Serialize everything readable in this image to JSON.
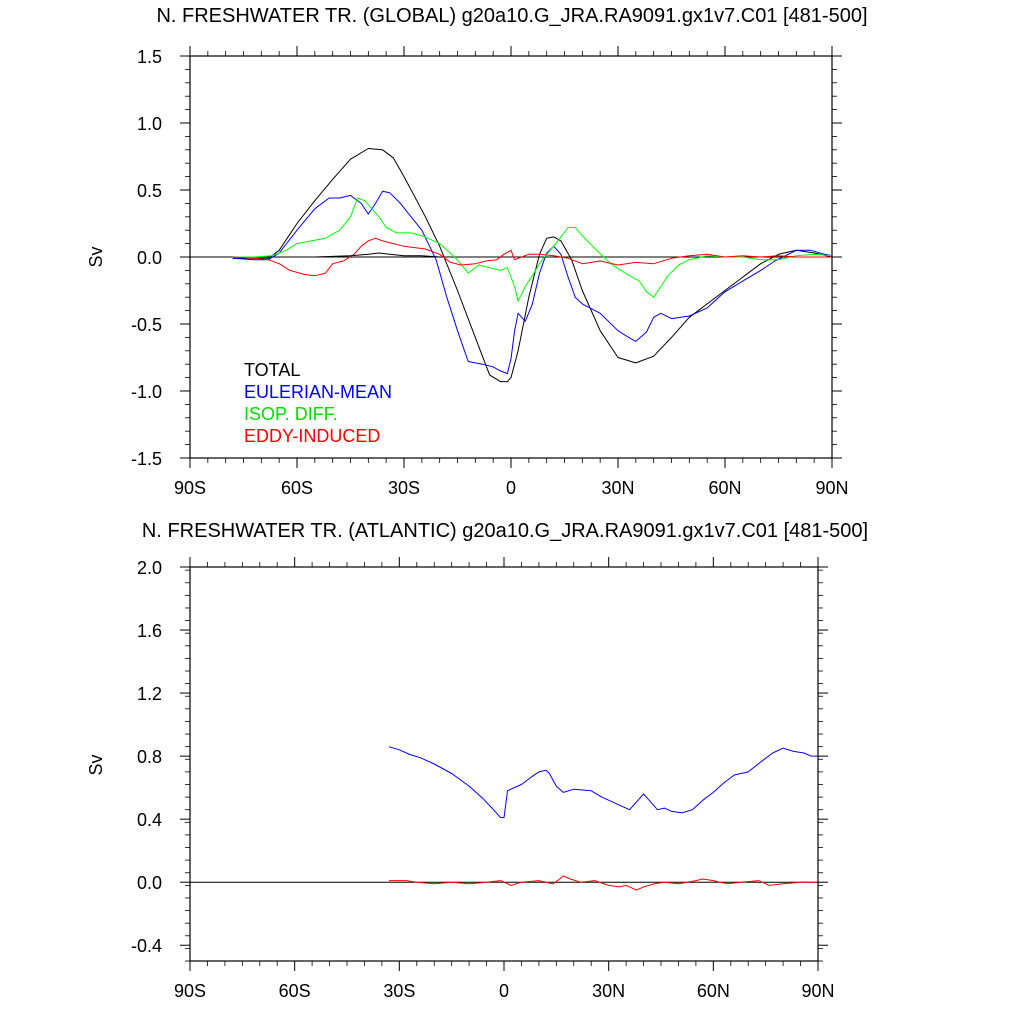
{
  "chart_data": [
    {
      "type": "line",
      "title": "N. FRESHWATER TR. (GLOBAL) g20a10.G_JRA.RA9091.gx1v7.C01 [481-500]",
      "ylabel": "Sv",
      "xlabel": "",
      "xlim": [
        -90,
        90
      ],
      "ylim": [
        -1.5,
        1.5
      ],
      "x_ticks": [
        -90,
        -60,
        -30,
        0,
        30,
        60,
        90
      ],
      "x_tick_labels": [
        "90S",
        "60S",
        "30S",
        "0",
        "30N",
        "60N",
        "90N"
      ],
      "y_ticks": [
        -1.5,
        -1.0,
        -0.5,
        0.0,
        0.5,
        1.0,
        1.5
      ],
      "y_tick_labels": [
        "-1.5",
        "-1.0",
        "-0.5",
        "0.0",
        "0.5",
        "1.0",
        "1.5"
      ],
      "zero_line": true,
      "grid": false,
      "legend_position": "lower-left",
      "series": [
        {
          "name": "TOTAL",
          "color": "#000000",
          "x": [
            -78,
            -72,
            -68,
            -65,
            -60,
            -55,
            -50,
            -45,
            -40,
            -36,
            -33,
            -30,
            -27,
            -24,
            -20,
            -15,
            -10,
            -6,
            -3,
            -1,
            0,
            2,
            5,
            8,
            10,
            12,
            14,
            17,
            20,
            25,
            30,
            35,
            40,
            45,
            50,
            55,
            60,
            65,
            70,
            75,
            80,
            85,
            90
          ],
          "y": [
            -0.01,
            -0.01,
            -0.01,
            0.05,
            0.25,
            0.42,
            0.58,
            0.73,
            0.81,
            0.8,
            0.74,
            0.6,
            0.45,
            0.3,
            0.08,
            -0.25,
            -0.6,
            -0.88,
            -0.93,
            -0.93,
            -0.9,
            -0.7,
            -0.3,
            0.02,
            0.14,
            0.15,
            0.12,
            -0.02,
            -0.25,
            -0.55,
            -0.75,
            -0.79,
            -0.74,
            -0.6,
            -0.45,
            -0.35,
            -0.25,
            -0.15,
            -0.05,
            0.02,
            0.05,
            0.03,
            0.0
          ]
        },
        {
          "name": "EULERIAN-MEAN",
          "color": "#0000ff",
          "x": [
            -78,
            -72,
            -68,
            -65,
            -60,
            -55,
            -51,
            -48,
            -45,
            -42,
            -40,
            -38,
            -36,
            -34,
            -31,
            -28,
            -25,
            -21,
            -18,
            -15,
            -12,
            -8,
            -5,
            -3,
            -1,
            0,
            1,
            2,
            4,
            6,
            8,
            10,
            12,
            14,
            16,
            18,
            20,
            25,
            30,
            33,
            35,
            38,
            40,
            42,
            45,
            50,
            55,
            60,
            65,
            70,
            74,
            77,
            80,
            84,
            88,
            90
          ],
          "y": [
            -0.01,
            -0.02,
            -0.02,
            0.03,
            0.2,
            0.36,
            0.44,
            0.44,
            0.46,
            0.4,
            0.32,
            0.4,
            0.49,
            0.48,
            0.4,
            0.3,
            0.2,
            -0.02,
            -0.3,
            -0.55,
            -0.78,
            -0.8,
            -0.82,
            -0.85,
            -0.87,
            -0.76,
            -0.55,
            -0.42,
            -0.48,
            -0.35,
            -0.12,
            0.03,
            0.08,
            0.02,
            -0.15,
            -0.3,
            -0.35,
            -0.42,
            -0.55,
            -0.6,
            -0.63,
            -0.56,
            -0.45,
            -0.42,
            -0.46,
            -0.44,
            -0.38,
            -0.26,
            -0.18,
            -0.1,
            -0.03,
            0.01,
            0.05,
            0.05,
            0.02,
            0.01
          ]
        },
        {
          "name": "ISOP. DIFF.",
          "color": "#00ff00",
          "x": [
            -78,
            -72,
            -67,
            -63,
            -60,
            -56,
            -52,
            -48,
            -45,
            -43,
            -41,
            -39,
            -37,
            -35,
            -32,
            -28,
            -25,
            -20,
            -15,
            -12,
            -9,
            -6,
            -3,
            -1,
            1,
            2,
            4,
            6,
            8,
            10,
            12,
            14,
            16,
            18,
            20,
            24,
            28,
            32,
            36,
            38,
            40,
            42,
            44,
            47,
            50,
            55,
            60,
            65,
            70,
            75,
            80,
            85,
            90
          ],
          "y": [
            0.0,
            0.0,
            0.01,
            0.05,
            0.1,
            0.12,
            0.14,
            0.2,
            0.3,
            0.44,
            0.42,
            0.36,
            0.3,
            0.22,
            0.18,
            0.18,
            0.16,
            0.1,
            -0.02,
            -0.12,
            -0.06,
            -0.08,
            -0.1,
            -0.08,
            -0.22,
            -0.33,
            -0.22,
            -0.14,
            -0.05,
            0.02,
            0.08,
            0.15,
            0.22,
            0.22,
            0.16,
            0.05,
            -0.05,
            -0.12,
            -0.18,
            -0.26,
            -0.3,
            -0.22,
            -0.14,
            -0.06,
            -0.02,
            0.01,
            0.0,
            0.0,
            -0.02,
            -0.02,
            0.01,
            0.02,
            0.01
          ]
        },
        {
          "name": "EDDY-INDUCED",
          "color": "#ff0000",
          "x": [
            -78,
            -72,
            -68,
            -65,
            -62,
            -58,
            -55,
            -52,
            -50,
            -47,
            -44,
            -42,
            -40,
            -38,
            -36,
            -33,
            -30,
            -27,
            -24,
            -20,
            -17,
            -14,
            -10,
            -7,
            -4,
            -2,
            0,
            1,
            3,
            5,
            8,
            12,
            16,
            20,
            25,
            30,
            35,
            40,
            45,
            50,
            55,
            60,
            65,
            70,
            75,
            80,
            85,
            90
          ],
          "y": [
            0.0,
            -0.01,
            -0.02,
            -0.05,
            -0.1,
            -0.13,
            -0.14,
            -0.12,
            -0.05,
            -0.03,
            0.02,
            0.08,
            0.12,
            0.14,
            0.12,
            0.1,
            0.08,
            0.07,
            0.06,
            0.02,
            -0.04,
            -0.06,
            -0.05,
            -0.03,
            -0.02,
            0.02,
            0.05,
            -0.02,
            0.0,
            0.02,
            0.02,
            0.01,
            -0.01,
            -0.05,
            -0.03,
            -0.06,
            -0.04,
            -0.05,
            -0.01,
            0.01,
            0.02,
            0.0,
            0.01,
            0.0,
            0.01,
            0.0,
            0.0,
            0.0
          ]
        },
        {
          "name": "",
          "color": "#000000",
          "x": [
            -55,
            -45,
            -40,
            -37,
            -34,
            -30,
            -25,
            -20
          ],
          "y": [
            0.0,
            0.01,
            0.02,
            0.03,
            0.02,
            0.01,
            0.01,
            0.0
          ]
        }
      ],
      "legend": [
        {
          "label": "TOTAL",
          "color": "#000000"
        },
        {
          "label": "EULERIAN-MEAN",
          "color": "#0000ff"
        },
        {
          "label": "ISOP. DIFF.",
          "color": "#00ff00"
        },
        {
          "label": "EDDY-INDUCED",
          "color": "#ff0000"
        }
      ]
    },
    {
      "type": "line",
      "title": "N. FRESHWATER TR. (ATLANTIC) g20a10.G_JRA.RA9091.gx1v7.C01 [481-500]",
      "ylabel": "Sv",
      "xlabel": "",
      "xlim": [
        -90,
        90
      ],
      "ylim": [
        -0.5,
        2.0
      ],
      "x_ticks": [
        -90,
        -60,
        -30,
        0,
        30,
        60,
        90
      ],
      "x_tick_labels": [
        "90S",
        "60S",
        "30S",
        "0",
        "30N",
        "60N",
        "90N"
      ],
      "y_ticks": [
        -0.4,
        0.0,
        0.4,
        0.8,
        1.2,
        1.6,
        2.0
      ],
      "y_tick_labels": [
        "-0.4",
        "0.0",
        "0.4",
        "0.8",
        "1.2",
        "1.6",
        "2.0"
      ],
      "zero_line": true,
      "grid": false,
      "series": [
        {
          "name": "",
          "color": "#0000ff",
          "x": [
            -33,
            -30,
            -27,
            -24,
            -20,
            -15,
            -10,
            -6,
            -3,
            -1,
            0,
            1,
            3,
            5,
            8,
            10,
            12,
            13,
            15,
            17,
            20,
            25,
            28,
            31,
            34,
            36,
            38,
            40,
            42,
            44,
            46,
            48,
            51,
            54,
            57,
            60,
            63,
            66,
            70,
            74,
            77,
            80,
            83,
            86,
            88,
            90
          ],
          "y": [
            0.86,
            0.84,
            0.81,
            0.79,
            0.75,
            0.69,
            0.61,
            0.53,
            0.46,
            0.41,
            0.41,
            0.58,
            0.6,
            0.62,
            0.67,
            0.7,
            0.71,
            0.69,
            0.61,
            0.57,
            0.59,
            0.58,
            0.54,
            0.51,
            0.48,
            0.46,
            0.51,
            0.56,
            0.51,
            0.46,
            0.47,
            0.45,
            0.44,
            0.46,
            0.52,
            0.57,
            0.63,
            0.68,
            0.7,
            0.77,
            0.82,
            0.85,
            0.83,
            0.82,
            0.8,
            0.8
          ]
        },
        {
          "name": "",
          "color": "#ff0000",
          "x": [
            -33,
            -28,
            -25,
            -20,
            -15,
            -10,
            -5,
            -1,
            2,
            5,
            10,
            14,
            16,
            17,
            19,
            22,
            26,
            30,
            33,
            35,
            38,
            40,
            43,
            46,
            50,
            55,
            57,
            60,
            64,
            68,
            73,
            76,
            80,
            85,
            90
          ],
          "y": [
            0.01,
            0.01,
            0.0,
            -0.01,
            0.0,
            -0.01,
            0.0,
            0.01,
            -0.02,
            0.0,
            0.01,
            -0.01,
            0.02,
            0.04,
            0.02,
            0.0,
            0.01,
            -0.02,
            -0.03,
            -0.02,
            -0.05,
            -0.03,
            -0.01,
            0.0,
            -0.01,
            0.01,
            0.02,
            0.01,
            -0.01,
            0.0,
            0.01,
            -0.02,
            -0.01,
            0.0,
            0.0
          ]
        }
      ]
    }
  ]
}
